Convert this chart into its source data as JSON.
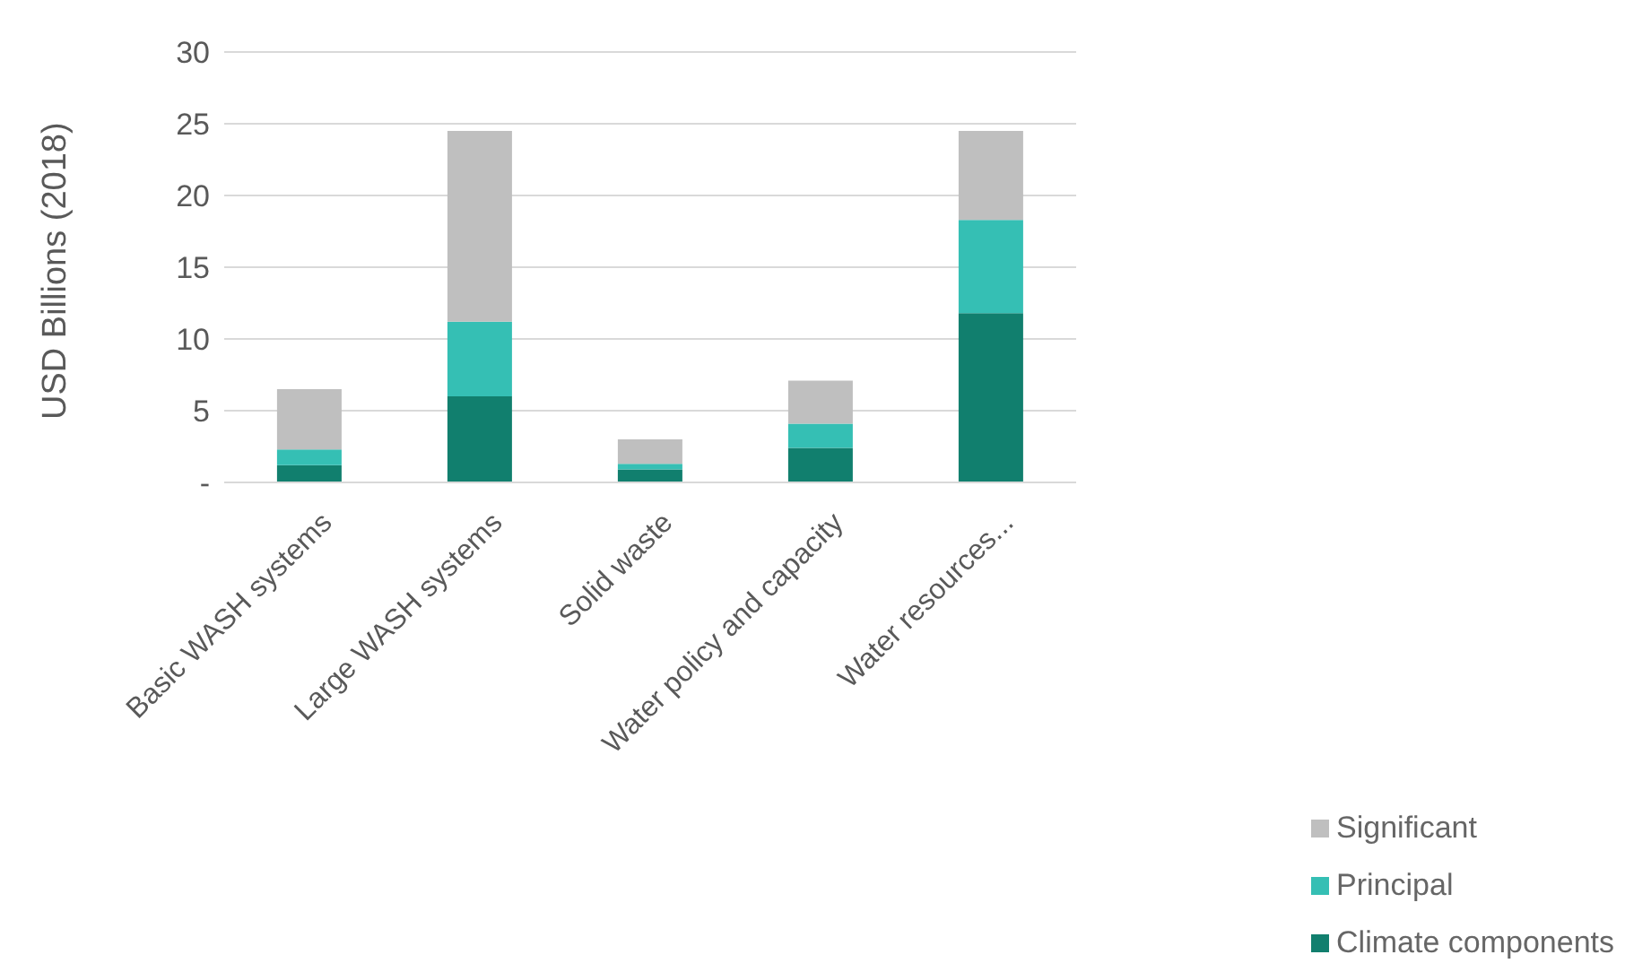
{
  "chart_data": {
    "type": "bar",
    "stacked": true,
    "ylabel": "USD Billions (2018)",
    "categories": [
      "Basic WASH systems",
      "Large WASH systems",
      "Solid waste",
      "Water policy and capacity",
      "Water resources..."
    ],
    "series": [
      {
        "name": "Climate components",
        "color": "#117f6e",
        "values": [
          1.2,
          6,
          0.9,
          2.4,
          11.8
        ]
      },
      {
        "name": "Principal",
        "color": "#35bfb4",
        "values": [
          1.1,
          5.2,
          0.4,
          1.7,
          6.5
        ]
      },
      {
        "name": "Significant",
        "color": "#bfbfbf",
        "values": [
          4.2,
          13.3,
          1.7,
          3.0,
          6.2
        ]
      }
    ],
    "ylim": [
      0,
      30
    ],
    "yticks": [
      {
        "value": 0,
        "label": "-"
      },
      5,
      10,
      15,
      20,
      25,
      30
    ],
    "grid": "y",
    "legend": "bottom right"
  }
}
